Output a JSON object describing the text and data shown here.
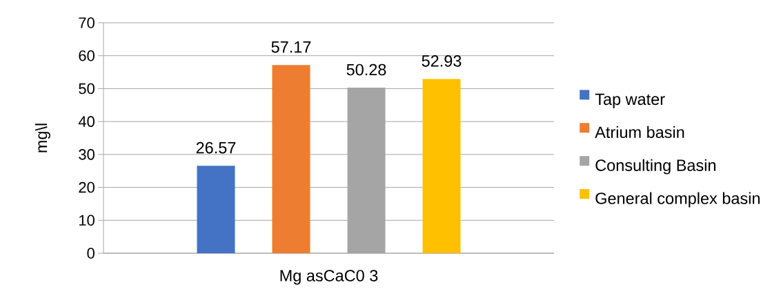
{
  "chart_data": {
    "type": "bar",
    "ylabel": "mg\\l",
    "categories": [
      "Mg asCaC0 3"
    ],
    "series": [
      {
        "name": "Tap water",
        "color": "#4472c4",
        "values": [
          26.57
        ]
      },
      {
        "name": "Atrium basin",
        "color": "#ed7d31",
        "values": [
          57.17
        ]
      },
      {
        "name": "Consulting Basin",
        "color": "#a5a5a5",
        "values": [
          50.28
        ]
      },
      {
        "name": "General complex basin",
        "color": "#ffc000",
        "values": [
          52.93
        ]
      }
    ],
    "ylim": [
      0,
      70
    ],
    "yticks": [
      0,
      10,
      20,
      30,
      40,
      50,
      60,
      70
    ],
    "grid": "y",
    "legend": "right",
    "data_labels": true
  }
}
